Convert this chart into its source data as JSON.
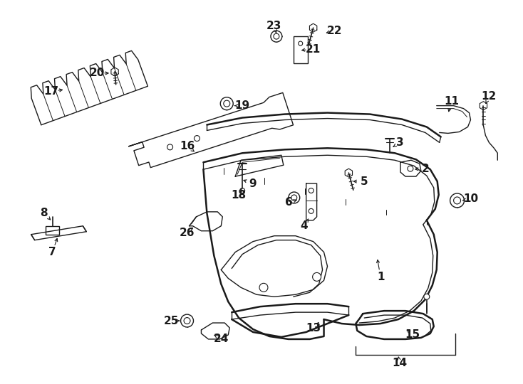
{
  "bg_color": "#ffffff",
  "line_color": "#1a1a1a",
  "fig_width": 7.34,
  "fig_height": 5.4,
  "dpi": 100,
  "label_fontsize": 11,
  "label_fontweight": "bold"
}
